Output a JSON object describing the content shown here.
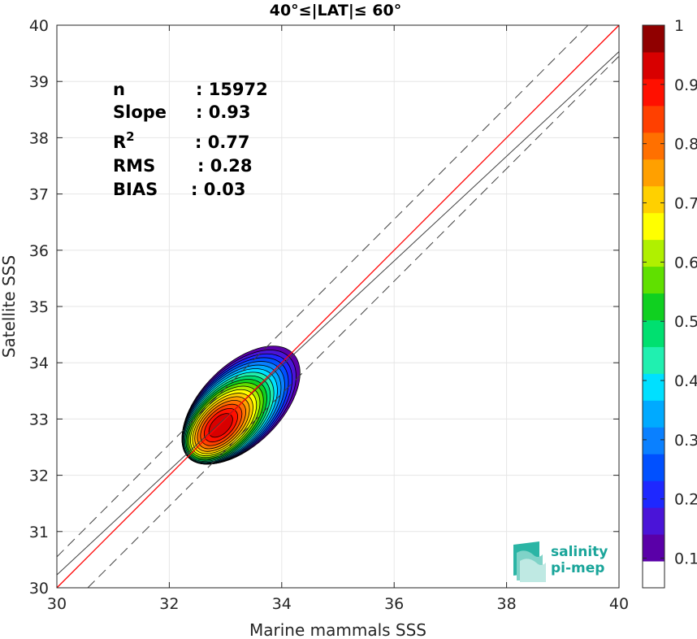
{
  "chart_data": {
    "type": "scatter",
    "title": "40°≤|LAT|≤ 60°",
    "xlabel": "Marine mammals SSS",
    "ylabel": "Satellite SSS",
    "xlim": [
      30,
      40
    ],
    "ylim": [
      30,
      40
    ],
    "xticks": [
      30,
      32,
      34,
      36,
      38,
      40
    ],
    "yticks": [
      30,
      31,
      32,
      33,
      34,
      35,
      36,
      37,
      38,
      39,
      40
    ],
    "grid": true,
    "lines": {
      "identity": {
        "slope": 1.0,
        "intercept": 0.0,
        "color": "#ff0000"
      },
      "fit": {
        "slope": 0.93,
        "intercept": 2.33,
        "color": "#404040"
      },
      "bounds_offset": 0.55
    },
    "density": {
      "center_x": 32.9,
      "center_y": 32.9,
      "levels": [
        0.05,
        0.1,
        0.15,
        0.2,
        0.25,
        0.3,
        0.35,
        0.4,
        0.45,
        0.5,
        0.55,
        0.6,
        0.65,
        0.7,
        0.75,
        0.8,
        0.85,
        0.9,
        0.95
      ]
    },
    "colorbar": {
      "ticks": [
        0.1,
        0.2,
        0.3,
        0.4,
        0.5,
        0.6,
        0.7,
        0.8,
        0.9,
        1
      ],
      "tick_labels": [
        "0.1",
        "0.2",
        "0.3",
        "0.4",
        "0.5",
        "0.6",
        "0.7",
        "0.8",
        "0.9",
        "1"
      ],
      "colors": [
        "#ffffff",
        "#5a00a8",
        "#4a14d8",
        "#1e28ff",
        "#0050ff",
        "#0a80ff",
        "#00aaff",
        "#00e0ff",
        "#20f0b0",
        "#00e070",
        "#10d020",
        "#60e000",
        "#b0f000",
        "#ffff00",
        "#ffd000",
        "#ffa000",
        "#ff7000",
        "#ff4000",
        "#ff1000",
        "#d80000",
        "#900000"
      ]
    },
    "stats": [
      {
        "label": "n",
        "sep": ": 15972"
      },
      {
        "label": "Slope",
        "sep": ": 0.93"
      },
      {
        "label": "R",
        "sup": "2",
        "sep": ": 0.77"
      },
      {
        "label": "RMS",
        "sep": ": 0.28"
      },
      {
        "label": "BIAS",
        "sep": ": 0.03"
      }
    ],
    "logo": {
      "line1": "salinity",
      "line2": "pi-mep"
    }
  }
}
